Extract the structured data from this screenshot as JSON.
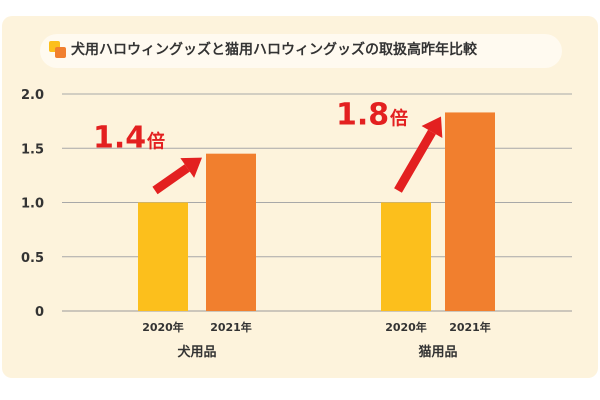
{
  "chart_data": {
    "type": "bar",
    "title": "犬用ハロウィングッズと猫用ハロウィングッズの取扱高昨年比較",
    "ylim": [
      0,
      2.0
    ],
    "yticks": [
      {
        "value": 0,
        "label": "0"
      },
      {
        "value": 0.5,
        "label": "0.5"
      },
      {
        "value": 1.0,
        "label": "1.0"
      },
      {
        "value": 1.5,
        "label": "1.5"
      },
      {
        "value": 2.0,
        "label": "2.0"
      }
    ],
    "grid": true,
    "colors": {
      "2020年": "#fcbf1c",
      "2021年": "#f17f2e",
      "annotation": "#e32020"
    },
    "groups": [
      {
        "name": "犬用品",
        "bars": [
          {
            "category": "2020年",
            "value": 1.0
          },
          {
            "category": "2021年",
            "value": 1.45
          }
        ],
        "multiplier": {
          "number": "1.4",
          "unit": "倍"
        }
      },
      {
        "name": "猫用品",
        "bars": [
          {
            "category": "2020年",
            "value": 1.0
          },
          {
            "category": "2021年",
            "value": 1.83
          }
        ],
        "multiplier": {
          "number": "1.8",
          "unit": "倍"
        }
      }
    ]
  }
}
